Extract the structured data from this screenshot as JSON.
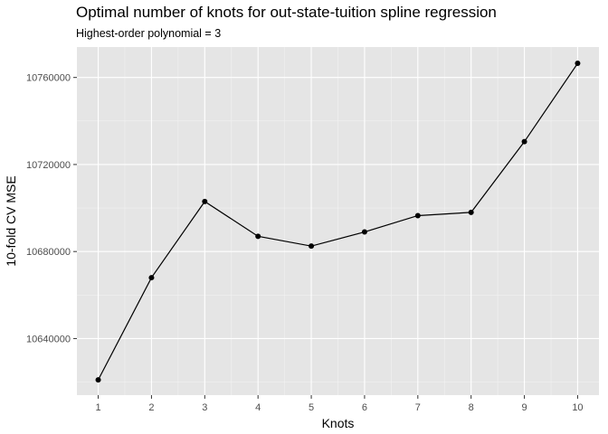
{
  "chart_data": {
    "type": "line",
    "title": "Optimal number of knots for out-state-tuition spline regression",
    "subtitle": "Highest-order polynomial = 3",
    "xlabel": "Knots",
    "ylabel": "10-fold CV MSE",
    "x": [
      1,
      2,
      3,
      4,
      5,
      6,
      7,
      8,
      9,
      10
    ],
    "series": [
      {
        "values": [
          10621000,
          10668000,
          10703000,
          10687000,
          10682500,
          10689000,
          10696500,
          10698000,
          10730500,
          10766500
        ]
      }
    ],
    "xlim": [
      0.6,
      10.4
    ],
    "ylim": [
      10614000,
      10774000
    ],
    "xticks": [
      1,
      2,
      3,
      4,
      5,
      6,
      7,
      8,
      9,
      10
    ],
    "yticks": [
      10640000,
      10680000,
      10720000,
      10760000
    ],
    "ytick_labels": [
      "10640000",
      "10680000",
      "10720000",
      "10760000"
    ],
    "grid": true,
    "colors": {
      "panel": "#e5e5e5",
      "grid_major": "#ffffff",
      "line": "#000000",
      "point": "#000000"
    }
  }
}
